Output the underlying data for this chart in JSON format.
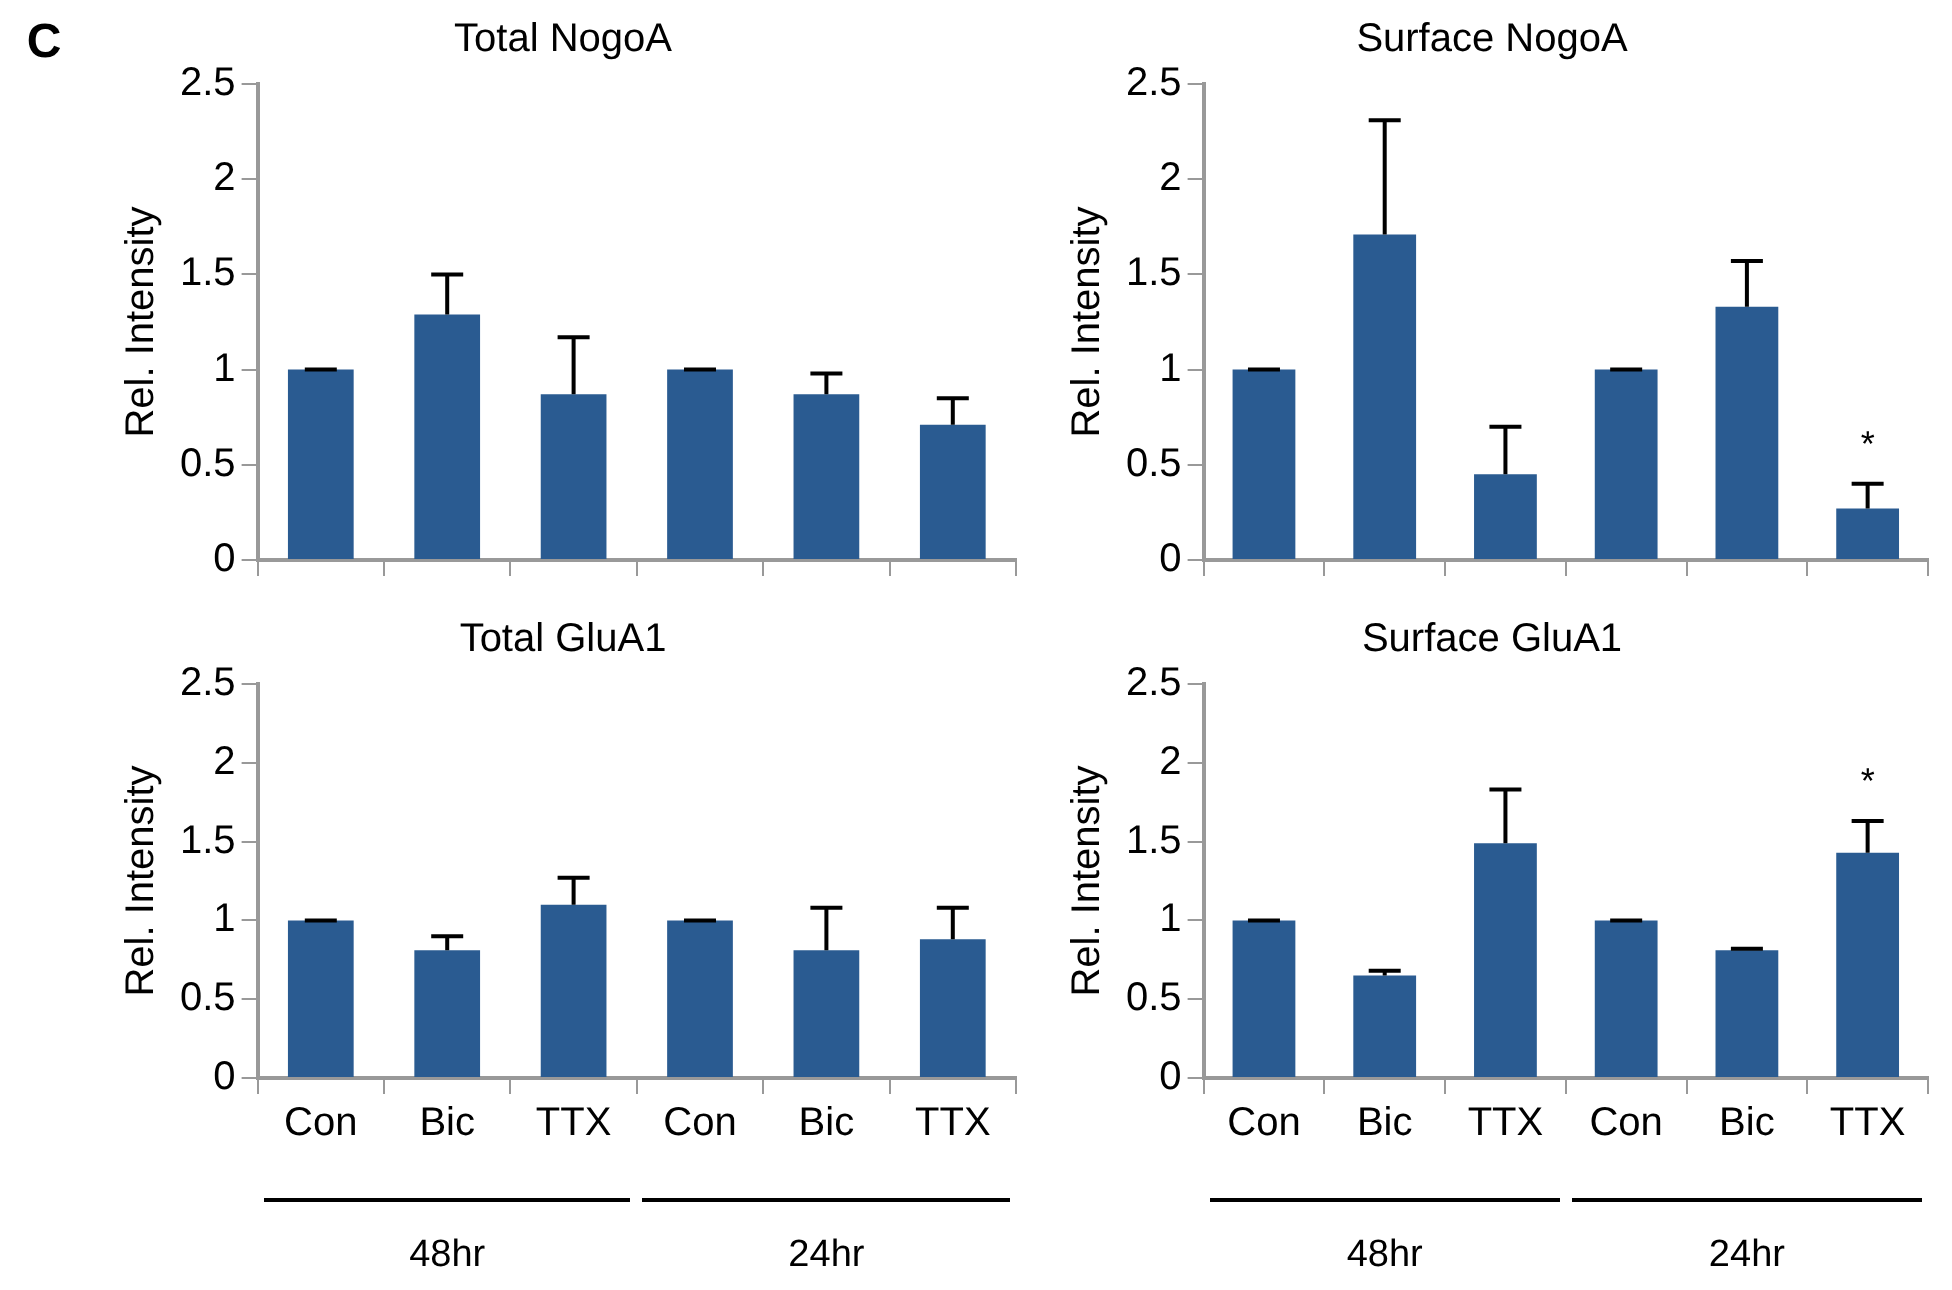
{
  "chart_data": [
    {
      "type": "bar",
      "title": "Total NogoA",
      "ylabel": "Rel. Intensity",
      "categories": [
        null,
        null,
        null,
        null,
        null,
        null
      ],
      "values": [
        1,
        1.29,
        0.87,
        1,
        0.87,
        0.71
      ],
      "errors": [
        0,
        [
          1.29,
          1.5
        ],
        [
          0.87,
          1.17
        ],
        0,
        [
          0.87,
          0.98
        ],
        [
          0.71,
          0.85
        ]
      ],
      "color": "#2a5b91",
      "ylim": [
        0,
        2.5
      ],
      "yticks": [
        0,
        0.5,
        1,
        1.5,
        2,
        2.5
      ],
      "tick_labels": "y",
      "annotations": [
        "C"
      ]
    },
    {
      "type": "bar",
      "title": "Surface NogoA",
      "ylabel": "Rel. Intensity",
      "categories": [
        null,
        null,
        null,
        null,
        null,
        null
      ],
      "values": [
        1,
        1.71,
        0.45,
        1,
        1.33,
        0.27
      ],
      "errors": [
        0,
        [
          1.71,
          2.31
        ],
        [
          0.45,
          0.7
        ],
        0,
        [
          1.33,
          1.57
        ],
        [
          0.27,
          0.4
        ]
      ],
      "value_labels": [
        null,
        null,
        null,
        null,
        null,
        "*"
      ],
      "color": "#2a5b91",
      "ylim": [
        0,
        2.5
      ],
      "yticks": [
        0,
        0.5,
        1,
        1.5,
        2,
        2.5
      ],
      "tick_labels": "y"
    },
    {
      "type": "bar",
      "title": "Total GluA1",
      "ylabel": "Rel. Intensity",
      "categories": [
        "Con",
        "Bic",
        "TTX",
        "Con",
        "Bic",
        "TTX"
      ],
      "values": [
        1,
        0.81,
        1.1,
        1,
        0.81,
        0.88
      ],
      "errors": [
        0,
        [
          0.81,
          0.9
        ],
        [
          1.1,
          1.27
        ],
        0,
        [
          0.81,
          1.08
        ],
        [
          0.88,
          1.08
        ]
      ],
      "color": "#2a5b91",
      "ylim": [
        0,
        2.5
      ],
      "yticks": [
        0,
        0.5,
        1,
        1.5,
        2,
        2.5
      ],
      "annotations": [
        "48hr",
        "24hr"
      ]
    },
    {
      "type": "bar",
      "title": "Surface GluA1",
      "ylabel": "Rel. Intensity",
      "categories": [
        "Con",
        "Bic",
        "TTX",
        "Con",
        "Bic",
        "TTX"
      ],
      "values": [
        1,
        0.65,
        1.49,
        1,
        0.81,
        1.43
      ],
      "errors": [
        0,
        [
          0.65,
          0.68
        ],
        [
          1.49,
          1.83
        ],
        0,
        [
          0.81,
          0.82
        ],
        [
          1.43,
          1.63
        ]
      ],
      "value_labels": [
        null,
        null,
        null,
        null,
        null,
        "*"
      ],
      "color": "#2a5b91",
      "ylim": [
        0,
        2.5
      ],
      "yticks": [
        0,
        0.5,
        1,
        1.5,
        2,
        2.5
      ],
      "annotations": [
        "48hr",
        "24hr"
      ]
    }
  ]
}
